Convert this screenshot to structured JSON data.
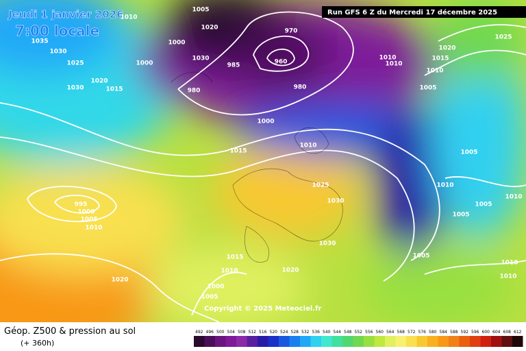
{
  "header": {
    "date": "Jeudi 1 janvier 2026",
    "time": "7:00 locale",
    "run": "Run GFS 6 Z du Mercredi 17 décembre 2025"
  },
  "copyright": "Copyright © 2025 Meteociel.fr",
  "footer": {
    "title": "Géop. Z500 & pression au sol",
    "lead": "(+ 360h)"
  },
  "colorbar": {
    "values": [
      492,
      496,
      500,
      504,
      508,
      512,
      516,
      520,
      524,
      528,
      532,
      536,
      540,
      544,
      548,
      552,
      556,
      560,
      564,
      568,
      572,
      576,
      580,
      584,
      588,
      592,
      596,
      600,
      604,
      608,
      612
    ],
    "colors": [
      "#2a0a30",
      "#4b0f5a",
      "#6a1480",
      "#7e1a9a",
      "#8a2aa8",
      "#5a1fa0",
      "#2a1aa8",
      "#1a30c8",
      "#1a58e0",
      "#1a80f0",
      "#20a8f8",
      "#30d0f0",
      "#40e8d0",
      "#40e0a0",
      "#50d870",
      "#70d850",
      "#98e040",
      "#c0e840",
      "#e0f060",
      "#f8f070",
      "#f8e050",
      "#f8c830",
      "#f8b020",
      "#f89818",
      "#f08018",
      "#e86010",
      "#e04010",
      "#d02010",
      "#a01010",
      "#601010",
      "#200808"
    ]
  },
  "isobar_labels": [
    1010,
    1005,
    1020,
    1000,
    1030,
    985,
    970,
    960,
    980,
    980,
    1000,
    1010,
    1010,
    1020,
    1015,
    1010,
    1005,
    1025,
    1035,
    1030,
    1025,
    1030,
    1020,
    1015,
    1000,
    1015,
    1010,
    1025,
    1030,
    995,
    1000,
    1005,
    1010,
    1030,
    1015,
    1010,
    1020,
    1020,
    1000,
    1005,
    1005,
    1010,
    1005,
    1010,
    1005,
    1005,
    1010,
    1010
  ]
}
